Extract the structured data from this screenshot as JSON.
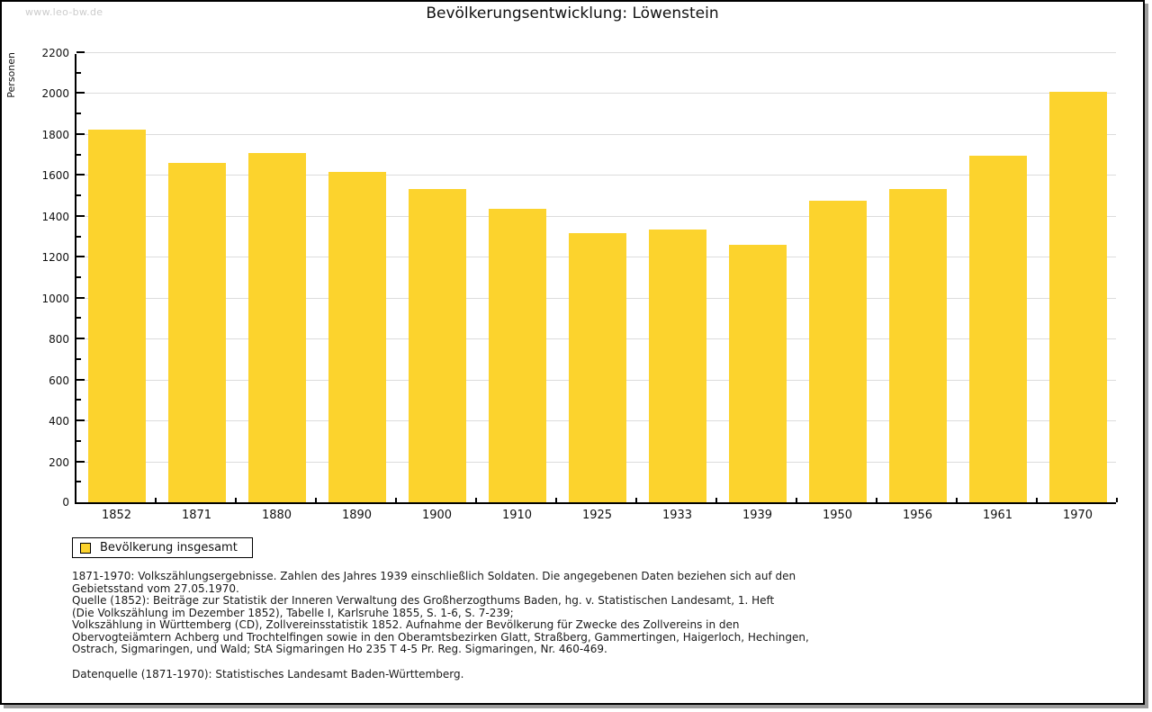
{
  "page": {
    "watermark": "www.leo-bw.de"
  },
  "chart_data": {
    "type": "bar",
    "title": "Bevölkerungsentwicklung: Löwenstein",
    "ylabel": "Personen",
    "xlabel": "",
    "categories": [
      "1852",
      "1871",
      "1880",
      "1890",
      "1900",
      "1910",
      "1925",
      "1933",
      "1939",
      "1950",
      "1956",
      "1961",
      "1970"
    ],
    "values": [
      1822,
      1659,
      1709,
      1617,
      1532,
      1435,
      1314,
      1333,
      1260,
      1474,
      1530,
      1696,
      2007
    ],
    "ylim": [
      0,
      2200
    ],
    "ytick_step": 200,
    "ytick_minor_step": 100,
    "grid": true,
    "legend_label": "Bevölkerung insgesamt",
    "legend_position": "bottom-left",
    "colors": {
      "bar_fill": "#FCD32D",
      "gridline": "#DCDCDC",
      "axis": "#000000",
      "watermark": "#CCCCCC"
    }
  },
  "footer": {
    "lines": [
      "1871-1970: Volkszählungsergebnisse. Zahlen des Jahres 1939 einschließlich Soldaten. Die angegebenen Daten beziehen sich auf den",
      "Gebietsstand vom 27.05.1970.",
      "Quelle (1852): Beiträge zur Statistik der Inneren Verwaltung des Großherzogthums Baden, hg. v. Statistischen Landesamt, 1. Heft",
      "(Die Volkszählung im Dezember 1852), Tabelle I, Karlsruhe 1855, S. 1-6, S. 7-239;",
      "Volkszählung in Württemberg (CD), Zollvereinsstatistik 1852. Aufnahme der Bevölkerung für Zwecke des Zollvereins in den",
      "Obervogteiämtern Achberg und Trochtelfingen sowie in den Oberamtsbezirken Glatt, Straßberg, Gammertingen, Haigerloch, Hechingen,",
      "Ostrach, Sigmaringen, und Wald; StA Sigmaringen Ho 235 T 4-5 Pr. Reg. Sigmaringen, Nr. 460-469."
    ],
    "datasource": "Datenquelle (1871-1970): Statistisches Landesamt Baden-Württemberg."
  }
}
